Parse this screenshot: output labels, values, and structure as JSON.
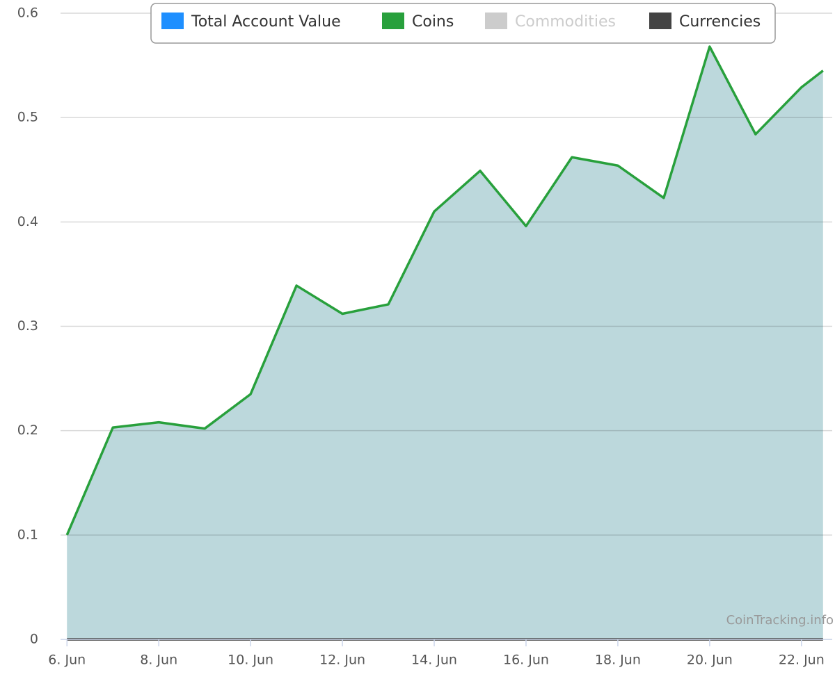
{
  "chart_data": {
    "type": "line",
    "x": [
      6,
      7,
      8,
      9,
      10,
      11,
      12,
      13,
      14,
      15,
      16,
      17,
      18,
      19,
      20,
      21,
      22,
      22.47
    ],
    "series": [
      {
        "name": "Total Account Value",
        "color": "#1e8fff",
        "fill": "#bcd8dc",
        "values": [
          0.1,
          0.203,
          0.208,
          0.202,
          0.235,
          0.339,
          0.312,
          0.321,
          0.41,
          0.449,
          0.396,
          0.462,
          0.454,
          0.423,
          0.568,
          0.484,
          0.529,
          0.545
        ]
      },
      {
        "name": "Coins",
        "color": "#28a03c",
        "values": [
          0.1,
          0.203,
          0.208,
          0.202,
          0.235,
          0.339,
          0.312,
          0.321,
          0.41,
          0.449,
          0.396,
          0.462,
          0.454,
          0.423,
          0.568,
          0.484,
          0.529,
          0.545
        ]
      },
      {
        "name": "Commodities",
        "color": "#cccccc",
        "visible": false
      },
      {
        "name": "Currencies",
        "color": "#434343",
        "values": [
          0,
          0,
          0,
          0,
          0,
          0,
          0,
          0,
          0,
          0,
          0,
          0,
          0,
          0,
          0,
          0,
          0,
          0
        ]
      }
    ],
    "xlim": [
      5.86,
      22.67
    ],
    "xticks": [
      {
        "value": 6,
        "label": "6. Jun"
      },
      {
        "value": 8,
        "label": "8. Jun"
      },
      {
        "value": 10,
        "label": "10. Jun"
      },
      {
        "value": 12,
        "label": "12. Jun"
      },
      {
        "value": 14,
        "label": "14. Jun"
      },
      {
        "value": 16,
        "label": "16. Jun"
      },
      {
        "value": 18,
        "label": "18. Jun"
      },
      {
        "value": 20,
        "label": "20. Jun"
      },
      {
        "value": 22,
        "label": "22. Jun"
      }
    ],
    "ylim": [
      0,
      0.6
    ],
    "yticks": [
      0,
      0.1,
      0.2,
      0.3,
      0.4,
      0.5,
      0.6
    ],
    "grid": true,
    "legend": "top",
    "watermark": "CoinTracking.info"
  }
}
